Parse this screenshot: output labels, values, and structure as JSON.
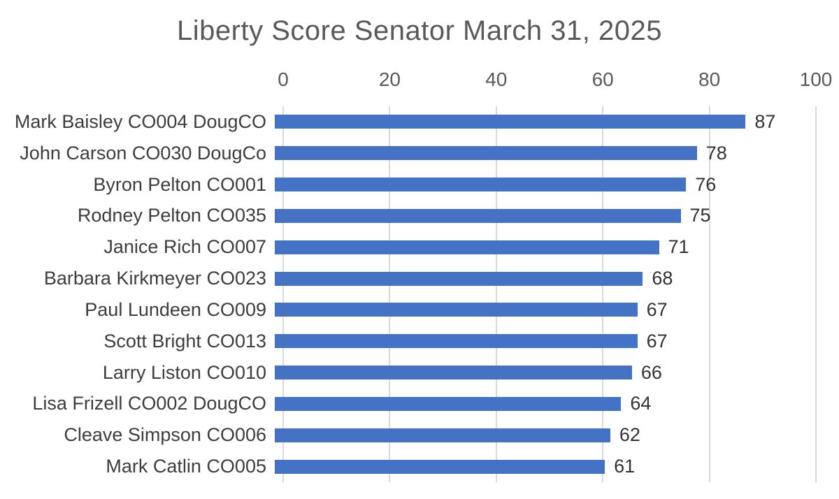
{
  "chart_data": {
    "type": "bar",
    "orientation": "horizontal",
    "title": "Liberty Score Senator March 31, 2025",
    "categories": [
      "Mark Baisley CO004 DougCO",
      "John Carson  CO030 DougCo",
      "Byron Pelton CO001",
      "Rodney Pelton  CO035",
      "Janice Rich  CO007",
      "Barbara Kirkmeyer CO023",
      "Paul Lundeen  CO009",
      "Scott Bright CO013",
      "Larry Liston  CO010",
      "Lisa Frizell CO002 DougCO",
      "Cleave Simpson  CO006",
      "Mark Catlin  CO005"
    ],
    "values": [
      87,
      78,
      76,
      75,
      71,
      68,
      67,
      67,
      66,
      64,
      62,
      61
    ],
    "xlabel": "",
    "ylabel": "",
    "xlim": [
      0,
      100
    ],
    "x_ticks": [
      0,
      20,
      40,
      60,
      80,
      100
    ],
    "grid": true,
    "legend": false,
    "axis_position": "top",
    "data_labels": true,
    "colors": {
      "bar": "#4472C4",
      "gridline": "#D9D9D9",
      "title": "#595959",
      "tick_label": "#595959",
      "category_label": "#3d3d3d",
      "value_label": "#333333",
      "background": "#ffffff"
    }
  }
}
